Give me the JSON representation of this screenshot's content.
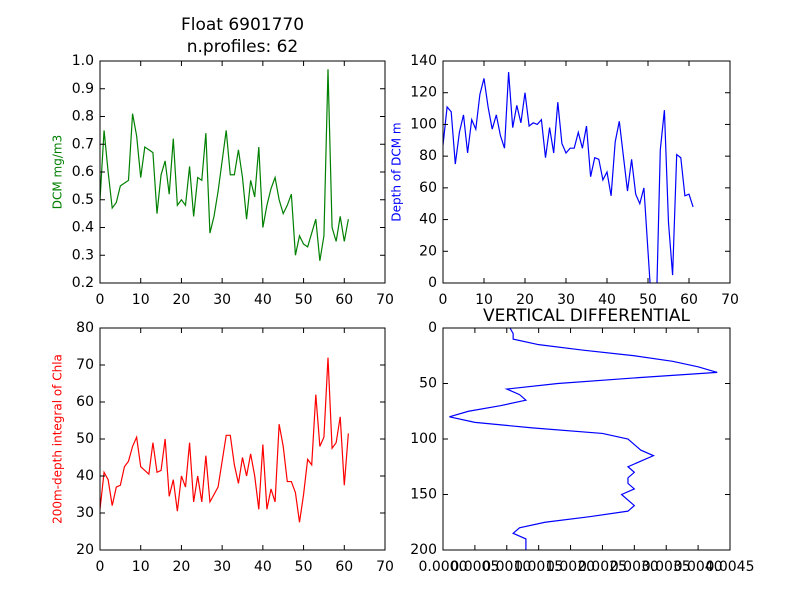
{
  "chart_data": [
    {
      "type": "line",
      "title": "Float 6901770",
      "subtitle": "n.profiles: 62",
      "ylabel": "DCM mg/m3",
      "color": "#008000",
      "x": [
        0,
        1,
        2,
        3,
        4,
        5,
        6,
        7,
        8,
        9,
        10,
        11,
        12,
        13,
        14,
        15,
        16,
        17,
        18,
        19,
        20,
        21,
        22,
        23,
        24,
        25,
        26,
        27,
        28,
        29,
        30,
        31,
        32,
        33,
        34,
        35,
        36,
        37,
        38,
        39,
        40,
        41,
        42,
        43,
        44,
        45,
        46,
        47,
        48,
        49,
        50,
        51,
        52,
        53,
        54,
        55,
        56,
        57,
        58,
        59,
        60,
        61
      ],
      "values": [
        0.5,
        0.75,
        0.6,
        0.47,
        0.49,
        0.55,
        0.56,
        0.57,
        0.81,
        0.73,
        0.58,
        0.69,
        0.68,
        0.67,
        0.45,
        0.59,
        0.64,
        0.52,
        0.72,
        0.48,
        0.5,
        0.48,
        0.62,
        0.44,
        0.58,
        0.57,
        0.74,
        0.38,
        0.44,
        0.53,
        0.64,
        0.75,
        0.59,
        0.59,
        0.68,
        0.58,
        0.43,
        0.57,
        0.51,
        0.69,
        0.4,
        0.48,
        0.54,
        0.58,
        0.5,
        0.45,
        0.48,
        0.52,
        0.3,
        0.37,
        0.34,
        0.33,
        0.38,
        0.43,
        0.28,
        0.37,
        0.97,
        0.4,
        0.35,
        0.44,
        0.35,
        0.43
      ],
      "xlim": [
        0,
        70
      ],
      "xticks": [
        0,
        10,
        20,
        30,
        40,
        50,
        60,
        70
      ],
      "ylim": [
        0.2,
        1.0
      ],
      "yticks": [
        0.2,
        0.3,
        0.4,
        0.5,
        0.6,
        0.7,
        0.8,
        0.9,
        {
          "value": 1.0,
          "label": "1.0"
        }
      ]
    },
    {
      "type": "line",
      "ylabel": "Depth of DCM m",
      "color": "#0000ff",
      "x": [
        0,
        1,
        2,
        3,
        4,
        5,
        6,
        7,
        8,
        9,
        10,
        11,
        12,
        13,
        14,
        15,
        16,
        17,
        18,
        19,
        20,
        21,
        22,
        23,
        24,
        25,
        26,
        27,
        28,
        29,
        30,
        31,
        32,
        33,
        34,
        35,
        36,
        37,
        38,
        39,
        40,
        41,
        42,
        43,
        44,
        45,
        46,
        47,
        48,
        49,
        50,
        51,
        52,
        53,
        54,
        55,
        56,
        57,
        58,
        59,
        60,
        61
      ],
      "values": [
        87,
        111,
        108,
        75,
        95,
        106,
        82,
        103,
        97,
        119,
        129,
        111,
        97,
        106,
        93,
        85,
        133,
        98,
        112,
        101,
        120,
        99,
        101,
        100,
        103,
        79,
        98,
        82,
        114,
        88,
        82,
        85,
        85,
        95,
        85,
        99,
        67,
        79,
        78,
        65,
        70,
        55,
        89,
        102,
        80,
        58,
        78,
        56,
        50,
        60,
        20,
        -20,
        -20,
        84,
        109,
        38,
        5,
        81,
        79,
        55,
        56,
        48
      ],
      "xlim": [
        0,
        70
      ],
      "xticks": [
        0,
        10,
        20,
        30,
        40,
        50,
        60,
        70
      ],
      "ylim": [
        0,
        140
      ],
      "yticks": [
        0,
        20,
        40,
        60,
        80,
        100,
        120,
        140
      ]
    },
    {
      "type": "line",
      "ylabel": "200m-depth integral of Chla",
      "color": "#ff0000",
      "x": [
        0,
        1,
        2,
        3,
        4,
        5,
        6,
        7,
        8,
        9,
        10,
        11,
        12,
        13,
        14,
        15,
        16,
        17,
        18,
        19,
        20,
        21,
        22,
        23,
        24,
        25,
        26,
        27,
        28,
        29,
        30,
        31,
        32,
        33,
        34,
        35,
        36,
        37,
        38,
        39,
        40,
        41,
        42,
        43,
        44,
        45,
        46,
        47,
        48,
        49,
        50,
        51,
        52,
        53,
        54,
        55,
        56,
        57,
        58,
        59,
        60,
        61
      ],
      "values": [
        31,
        41,
        39,
        32,
        37,
        37.5,
        42.5,
        44,
        48,
        50.5,
        42.5,
        41.5,
        40.5,
        49,
        41,
        41.5,
        50,
        34.5,
        39,
        30.5,
        40,
        37,
        49,
        33,
        40,
        33,
        45.5,
        33,
        35,
        37,
        44,
        51,
        51,
        43,
        38,
        45,
        40,
        46,
        40,
        31,
        48.5,
        31,
        36.5,
        33,
        54,
        48,
        38.5,
        38.5,
        35.5,
        27.5,
        35,
        44.5,
        43,
        62,
        48,
        50.5,
        72,
        47.5,
        49,
        56,
        37.5,
        51.5
      ],
      "xlim": [
        0,
        70
      ],
      "xticks": [
        0,
        10,
        20,
        30,
        40,
        50,
        60,
        70
      ],
      "ylim": [
        20,
        80
      ],
      "yticks": [
        20,
        30,
        40,
        50,
        60,
        70,
        80
      ]
    },
    {
      "type": "profile",
      "title": "VERTICAL DIFFERENTIAL",
      "color": "#0000ff",
      "x": [
        0.00105,
        0.0011,
        0.0011,
        0.0015,
        0.0022,
        0.003,
        0.0036,
        0.004,
        0.0043,
        0.003,
        0.0018,
        0.001,
        0.0012,
        0.0013,
        0.0009,
        0.0004,
        0.0001,
        0.0005,
        0.0014,
        0.0025,
        0.0029,
        0.003,
        0.0031,
        0.0033,
        0.0031,
        0.0029,
        0.003,
        0.0029,
        0.0029,
        0.003,
        0.0028,
        0.0029,
        0.003,
        0.0029,
        0.0023,
        0.0016,
        0.0012,
        0.0011,
        0.0013,
        0.0013,
        0.0013
      ],
      "y": [
        0,
        5,
        10,
        15,
        20,
        25,
        30,
        35,
        40,
        45,
        50,
        55,
        60,
        65,
        70,
        75,
        80,
        85,
        90,
        95,
        100,
        105,
        110,
        115,
        120,
        125,
        130,
        135,
        140,
        145,
        150,
        155,
        160,
        165,
        170,
        175,
        180,
        185,
        190,
        195,
        200
      ],
      "xlim": [
        0,
        0.0045
      ],
      "xticks": [
        {
          "value": 0,
          "label": "0.0000"
        },
        {
          "value": 0.0005,
          "label": "0.0005"
        },
        {
          "value": 0.001,
          "label": "0.0010"
        },
        {
          "value": 0.0015,
          "label": "0.0015"
        },
        {
          "value": 0.002,
          "label": "0.0020"
        },
        {
          "value": 0.0025,
          "label": "0.0025"
        },
        {
          "value": 0.003,
          "label": "0.0030"
        },
        {
          "value": 0.0035,
          "label": "0.0035"
        },
        {
          "value": 0.004,
          "label": "0.0040"
        },
        {
          "value": 0.0045,
          "label": "0.0045"
        }
      ],
      "ylim": [
        200,
        0
      ],
      "yticks": [
        0,
        50,
        100,
        150,
        200
      ]
    }
  ]
}
